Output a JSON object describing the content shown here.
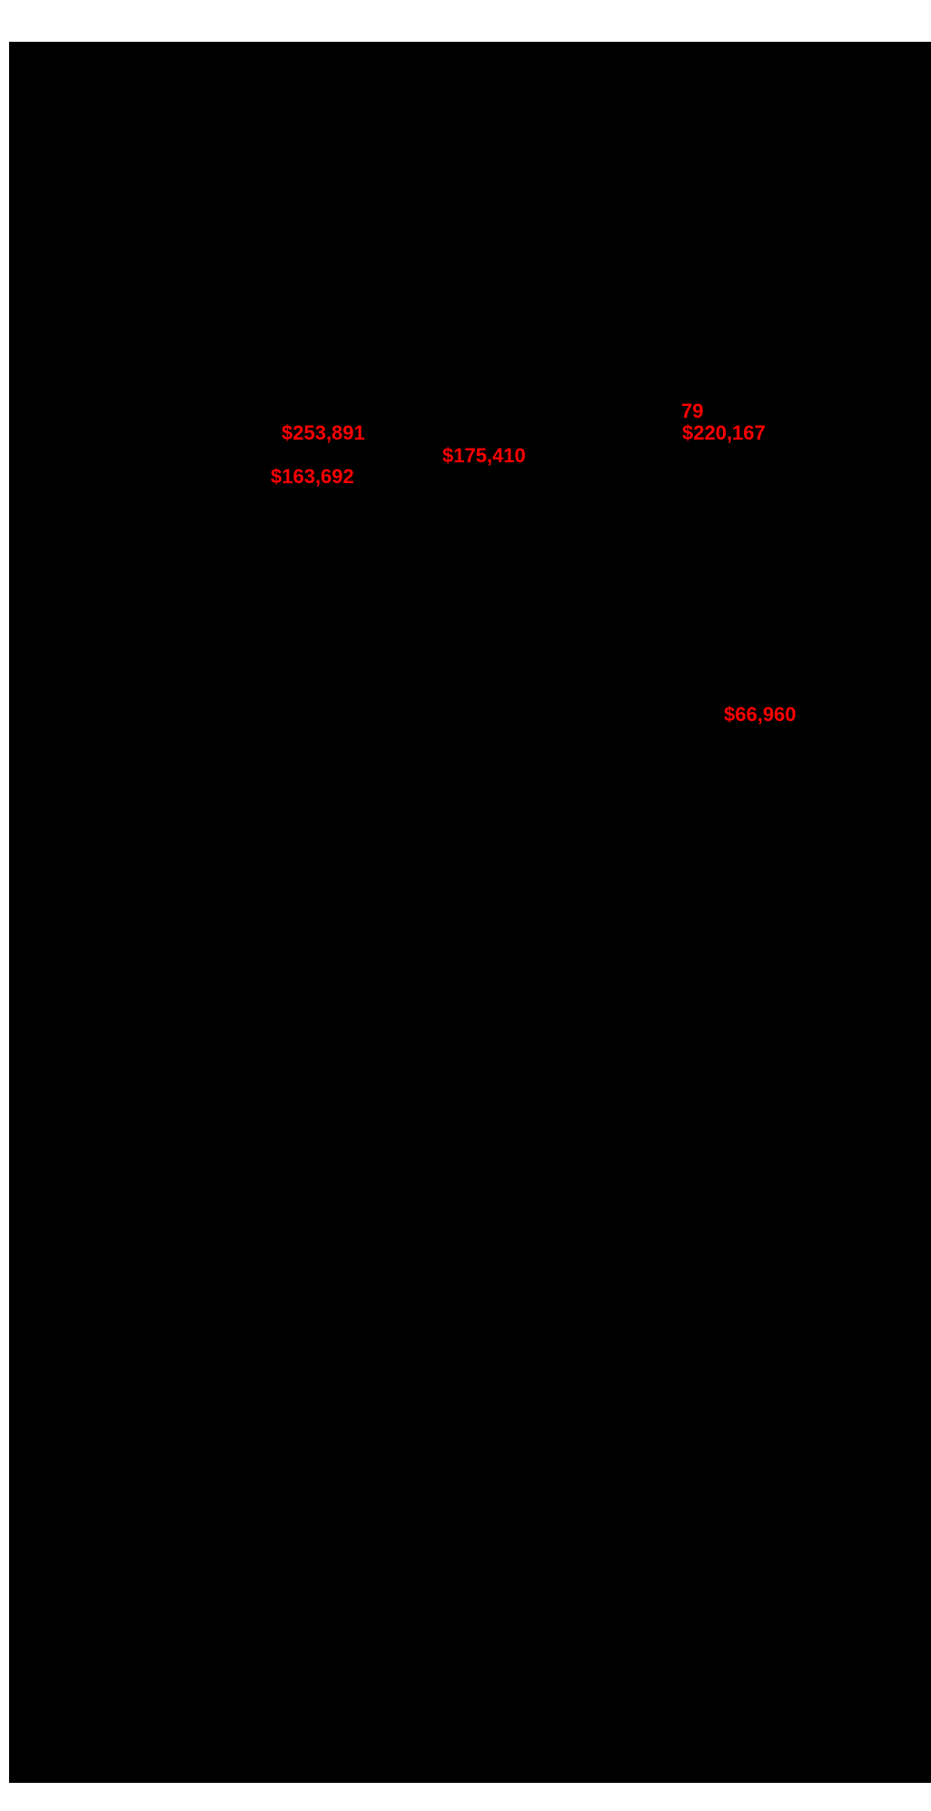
{
  "colors": {
    "page_background": "#ffffff",
    "chart_background": "#000000",
    "label_color": "#ff0000"
  },
  "chart_data": {
    "type": "scatter",
    "title": "",
    "xlabel": "",
    "ylabel": "",
    "grid": false,
    "background": "#000000",
    "label_color": "#ff0000",
    "annotations": [
      {
        "label": "79",
        "value": 79
      },
      {
        "label": "$253,891",
        "value": 253891
      },
      {
        "label": "$220,167",
        "value": 220167
      },
      {
        "label": "$175,410",
        "value": 175410
      },
      {
        "label": "$163,692",
        "value": 163692
      },
      {
        "label": "$66,960",
        "value": 66960
      }
    ]
  },
  "labels": [
    {
      "text": "79"
    },
    {
      "text": "$253,891"
    },
    {
      "text": "$220,167"
    },
    {
      "text": "$175,410"
    },
    {
      "text": "$163,692"
    },
    {
      "text": "$66,960"
    }
  ]
}
